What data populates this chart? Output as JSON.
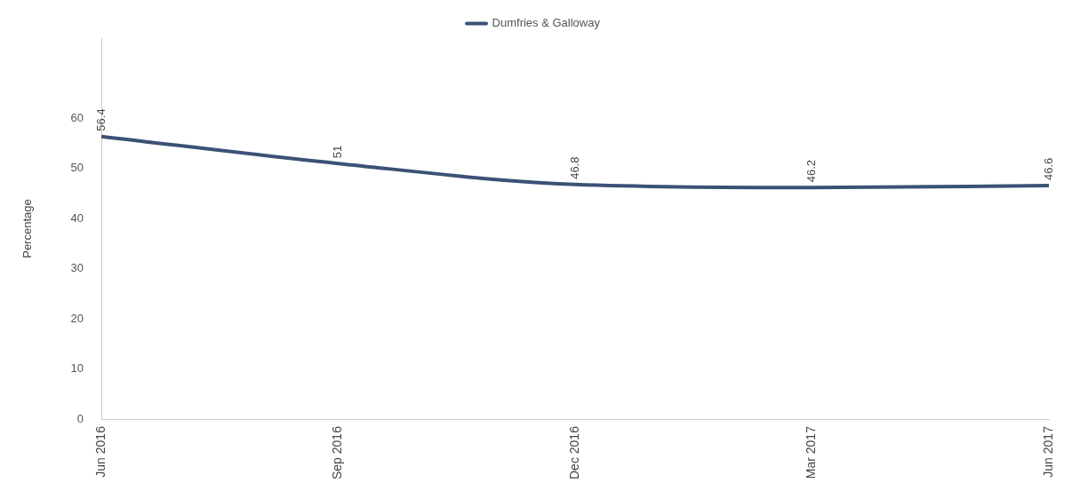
{
  "chart_data": {
    "type": "line",
    "ylabel": "Percentage",
    "categories": [
      "Jun 2016",
      "Sep 2016",
      "Dec 2016",
      "Mar 2017",
      "Jun 2017"
    ],
    "series": [
      {
        "name": "Dumfries & Galloway",
        "color": "#3b5276",
        "values": [
          56.4,
          51,
          46.8,
          46.2,
          46.6
        ]
      }
    ],
    "ylim": [
      0,
      76
    ],
    "yticks": [
      0,
      10,
      20,
      30,
      40,
      50,
      60
    ],
    "grid": false,
    "legend": "top right",
    "marker": "none",
    "data_labels": true
  }
}
